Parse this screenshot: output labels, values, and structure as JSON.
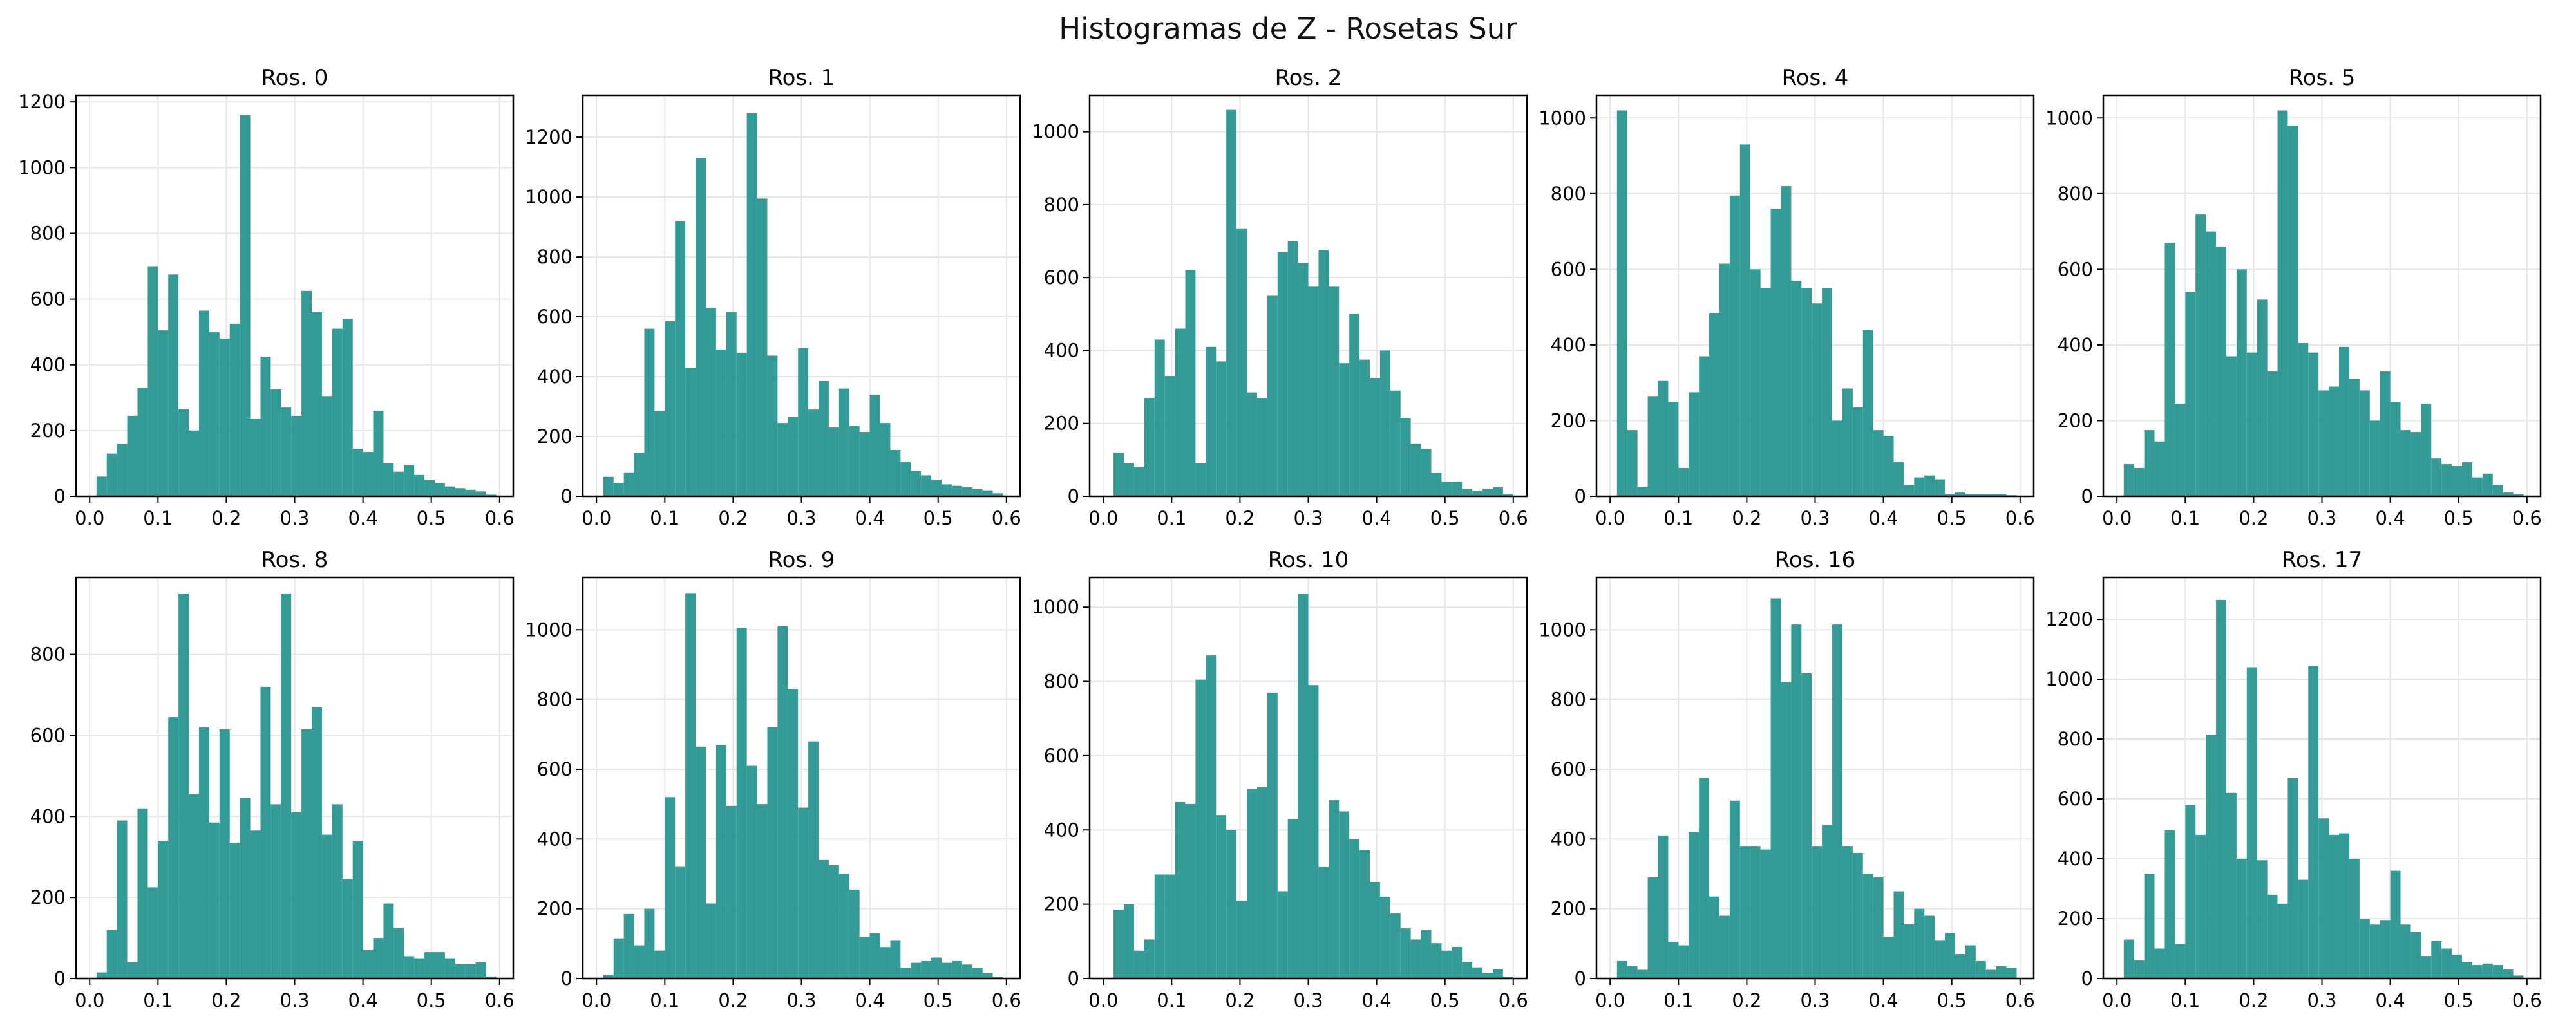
{
  "figure_title": "Histogramas de Z - Rosetas Sur",
  "bar_color": "#339a96",
  "grid_color": "#e6e6e6",
  "chart_data": [
    {
      "type": "bar",
      "title": "Ros. 0",
      "bin_start": 0.01,
      "bin_width": 0.015,
      "xlim": [
        -0.02,
        0.62
      ],
      "ylim": [
        0,
        1220
      ],
      "xticks": [
        "0.0",
        "0.1",
        "0.2",
        "0.3",
        "0.4",
        "0.5",
        "0.6"
      ],
      "yticks": [
        "0",
        "200",
        "400",
        "600",
        "800",
        "1000",
        "1200"
      ],
      "values": [
        60,
        130,
        160,
        245,
        330,
        700,
        505,
        675,
        265,
        200,
        565,
        500,
        480,
        525,
        1160,
        235,
        425,
        325,
        270,
        245,
        625,
        560,
        305,
        510,
        540,
        145,
        135,
        260,
        100,
        75,
        95,
        65,
        50,
        40,
        30,
        25,
        20,
        15,
        5
      ]
    },
    {
      "type": "bar",
      "title": "Ros. 1",
      "bin_start": 0.01,
      "bin_width": 0.015,
      "xlim": [
        -0.02,
        0.62
      ],
      "ylim": [
        0,
        1340
      ],
      "xticks": [
        "0.0",
        "0.1",
        "0.2",
        "0.3",
        "0.4",
        "0.5",
        "0.6"
      ],
      "yticks": [
        "0",
        "200",
        "400",
        "600",
        "800",
        "1000",
        "1200"
      ],
      "values": [
        65,
        45,
        80,
        145,
        560,
        285,
        585,
        920,
        430,
        1130,
        630,
        490,
        615,
        480,
        1280,
        995,
        470,
        245,
        265,
        495,
        290,
        385,
        230,
        360,
        235,
        215,
        340,
        245,
        155,
        115,
        85,
        70,
        55,
        40,
        35,
        30,
        25,
        20,
        10
      ]
    },
    {
      "type": "bar",
      "title": "Ros. 2",
      "bin_start": 0.015,
      "bin_width": 0.015,
      "xlim": [
        -0.02,
        0.62
      ],
      "ylim": [
        0,
        1100
      ],
      "xticks": [
        "0.0",
        "0.1",
        "0.2",
        "0.3",
        "0.4",
        "0.5",
        "0.6"
      ],
      "yticks": [
        "0",
        "200",
        "400",
        "600",
        "800",
        "1000"
      ],
      "values": [
        120,
        90,
        80,
        270,
        430,
        330,
        460,
        620,
        90,
        410,
        370,
        1060,
        735,
        285,
        270,
        550,
        670,
        700,
        640,
        575,
        675,
        575,
        365,
        500,
        375,
        325,
        400,
        290,
        215,
        145,
        130,
        65,
        40,
        40,
        20,
        15,
        20,
        25,
        5
      ]
    },
    {
      "type": "bar",
      "title": "Ros. 4",
      "bin_start": 0.01,
      "bin_width": 0.015,
      "xlim": [
        -0.02,
        0.62
      ],
      "ylim": [
        0,
        1060
      ],
      "xticks": [
        "0.0",
        "0.1",
        "0.2",
        "0.3",
        "0.4",
        "0.5",
        "0.6"
      ],
      "yticks": [
        "0",
        "200",
        "400",
        "600",
        "800",
        "1000"
      ],
      "values": [
        1020,
        175,
        25,
        265,
        305,
        250,
        75,
        275,
        370,
        485,
        615,
        795,
        930,
        600,
        550,
        760,
        820,
        570,
        550,
        510,
        550,
        200,
        285,
        235,
        440,
        175,
        160,
        90,
        30,
        50,
        55,
        45,
        5,
        10,
        5,
        5,
        5,
        5,
        3
      ]
    },
    {
      "type": "bar",
      "title": "Ros. 5",
      "bin_start": 0.01,
      "bin_width": 0.015,
      "xlim": [
        -0.02,
        0.62
      ],
      "ylim": [
        0,
        1060
      ],
      "xticks": [
        "0.0",
        "0.1",
        "0.2",
        "0.3",
        "0.4",
        "0.5",
        "0.6"
      ],
      "yticks": [
        "0",
        "200",
        "400",
        "600",
        "800",
        "1000"
      ],
      "values": [
        85,
        75,
        175,
        145,
        670,
        245,
        540,
        745,
        700,
        660,
        370,
        600,
        380,
        520,
        330,
        1020,
        980,
        405,
        380,
        280,
        290,
        395,
        310,
        280,
        200,
        330,
        250,
        175,
        170,
        245,
        100,
        85,
        80,
        90,
        50,
        60,
        30,
        10,
        5
      ]
    },
    {
      "type": "bar",
      "title": "Ros. 8",
      "bin_start": 0.01,
      "bin_width": 0.015,
      "xlim": [
        -0.02,
        0.62
      ],
      "ylim": [
        0,
        990
      ],
      "xticks": [
        "0.0",
        "0.1",
        "0.2",
        "0.3",
        "0.4",
        "0.5",
        "0.6"
      ],
      "yticks": [
        "0",
        "200",
        "400",
        "600",
        "800"
      ],
      "values": [
        15,
        120,
        390,
        40,
        420,
        225,
        340,
        645,
        950,
        455,
        620,
        385,
        615,
        335,
        445,
        365,
        720,
        430,
        950,
        410,
        615,
        670,
        355,
        430,
        245,
        340,
        70,
        100,
        185,
        125,
        55,
        50,
        65,
        65,
        50,
        35,
        35,
        40,
        5
      ]
    },
    {
      "type": "bar",
      "title": "Ros. 9",
      "bin_start": 0.01,
      "bin_width": 0.015,
      "xlim": [
        -0.02,
        0.62
      ],
      "ylim": [
        0,
        1150
      ],
      "xticks": [
        "0.0",
        "0.1",
        "0.2",
        "0.3",
        "0.4",
        "0.5",
        "0.6"
      ],
      "yticks": [
        "0",
        "200",
        "400",
        "600",
        "800",
        "1000"
      ],
      "values": [
        10,
        115,
        185,
        95,
        200,
        80,
        520,
        320,
        1105,
        665,
        215,
        670,
        495,
        1005,
        610,
        500,
        720,
        1010,
        830,
        490,
        680,
        340,
        325,
        300,
        255,
        120,
        130,
        90,
        110,
        30,
        45,
        50,
        60,
        45,
        50,
        40,
        30,
        15,
        5
      ]
    },
    {
      "type": "bar",
      "title": "Ros. 10",
      "bin_start": 0.015,
      "bin_width": 0.015,
      "xlim": [
        -0.02,
        0.62
      ],
      "ylim": [
        0,
        1080
      ],
      "xticks": [
        "0.0",
        "0.1",
        "0.2",
        "0.3",
        "0.4",
        "0.5",
        "0.6"
      ],
      "yticks": [
        "0",
        "200",
        "400",
        "600",
        "800",
        "1000"
      ],
      "values": [
        185,
        200,
        75,
        105,
        280,
        280,
        475,
        470,
        805,
        870,
        440,
        400,
        210,
        510,
        515,
        770,
        235,
        430,
        1035,
        790,
        300,
        480,
        450,
        375,
        345,
        260,
        220,
        175,
        135,
        105,
        130,
        95,
        75,
        85,
        45,
        30,
        15,
        25,
        5
      ]
    },
    {
      "type": "bar",
      "title": "Ros. 16",
      "bin_start": 0.01,
      "bin_width": 0.015,
      "xlim": [
        -0.02,
        0.62
      ],
      "ylim": [
        0,
        1150
      ],
      "xticks": [
        "0.0",
        "0.1",
        "0.2",
        "0.3",
        "0.4",
        "0.5",
        "0.6"
      ],
      "yticks": [
        "0",
        "200",
        "400",
        "600",
        "800",
        "1000"
      ],
      "values": [
        50,
        35,
        25,
        290,
        410,
        105,
        95,
        420,
        575,
        235,
        180,
        510,
        380,
        380,
        370,
        1090,
        850,
        1015,
        875,
        380,
        440,
        1015,
        380,
        360,
        300,
        290,
        120,
        250,
        155,
        200,
        180,
        110,
        130,
        70,
        95,
        50,
        25,
        35,
        30
      ]
    },
    {
      "type": "bar",
      "title": "Ros. 17",
      "bin_start": 0.01,
      "bin_width": 0.015,
      "xlim": [
        -0.02,
        0.62
      ],
      "ylim": [
        0,
        1340
      ],
      "xticks": [
        "0.0",
        "0.1",
        "0.2",
        "0.3",
        "0.4",
        "0.5",
        "0.6"
      ],
      "yticks": [
        "0",
        "200",
        "400",
        "600",
        "800",
        "1000",
        "1200"
      ],
      "values": [
        130,
        60,
        350,
        100,
        495,
        115,
        580,
        480,
        815,
        1265,
        620,
        400,
        1040,
        395,
        280,
        250,
        670,
        330,
        1045,
        535,
        480,
        485,
        400,
        200,
        180,
        195,
        360,
        180,
        155,
        75,
        125,
        100,
        80,
        55,
        45,
        50,
        45,
        30,
        10
      ]
    }
  ]
}
